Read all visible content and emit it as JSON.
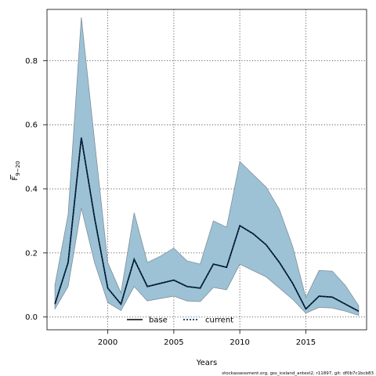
{
  "chart_data": {
    "type": "area",
    "xlabel": "Years",
    "ylabel": "F",
    "ylabel_subscript": "9−20",
    "xlim": [
      1995.4,
      2019.6
    ],
    "ylim": [
      -0.04,
      0.96
    ],
    "x_ticks": [
      2000,
      2005,
      2010,
      2015
    ],
    "y_ticks": [
      0.0,
      0.2,
      0.4,
      0.6,
      0.8
    ],
    "x_tick_labels": [
      "2000",
      "2005",
      "2010",
      "2015"
    ],
    "y_tick_labels": [
      "0.0",
      "0.2",
      "0.4",
      "0.6",
      "0.8"
    ],
    "grid": true,
    "legend_position": "bottom-center",
    "series": [
      {
        "name": "current",
        "style": "dotted",
        "color": "#0a3a66",
        "band_color": "#9dc2d6",
        "x": [
          1996,
          1997,
          1998,
          1999,
          2000,
          2001,
          2002,
          2003,
          2004,
          2005,
          2006,
          2007,
          2008,
          2009,
          2010,
          2011,
          2012,
          2013,
          2014,
          2015,
          2016,
          2017,
          2018,
          2019
        ],
        "values": [
          0.04,
          0.17,
          0.56,
          0.31,
          0.09,
          0.04,
          0.18,
          0.095,
          0.105,
          0.115,
          0.095,
          0.09,
          0.165,
          0.155,
          0.285,
          0.26,
          0.225,
          0.17,
          0.105,
          0.025,
          0.065,
          0.062,
          0.04,
          0.018
        ],
        "lower": [
          0.025,
          0.095,
          0.34,
          0.17,
          0.045,
          0.02,
          0.095,
          0.05,
          0.058,
          0.065,
          0.05,
          0.048,
          0.092,
          0.085,
          0.165,
          0.145,
          0.125,
          0.09,
          0.055,
          0.012,
          0.03,
          0.028,
          0.018,
          0.005
        ],
        "upper": [
          0.1,
          0.32,
          0.935,
          0.55,
          0.17,
          0.075,
          0.325,
          0.17,
          0.19,
          0.215,
          0.175,
          0.165,
          0.3,
          0.28,
          0.485,
          0.445,
          0.405,
          0.335,
          0.22,
          0.06,
          0.145,
          0.143,
          0.098,
          0.035
        ]
      }
    ],
    "legend": [
      {
        "label": "base",
        "style": "solid",
        "color": "#000000"
      },
      {
        "label": "current",
        "style": "dotted",
        "color": "#0a3a66"
      }
    ]
  },
  "footer_text": "stockassessment.org, gss_iceland_antest2, r11897, git: df0b7c1bcb83"
}
